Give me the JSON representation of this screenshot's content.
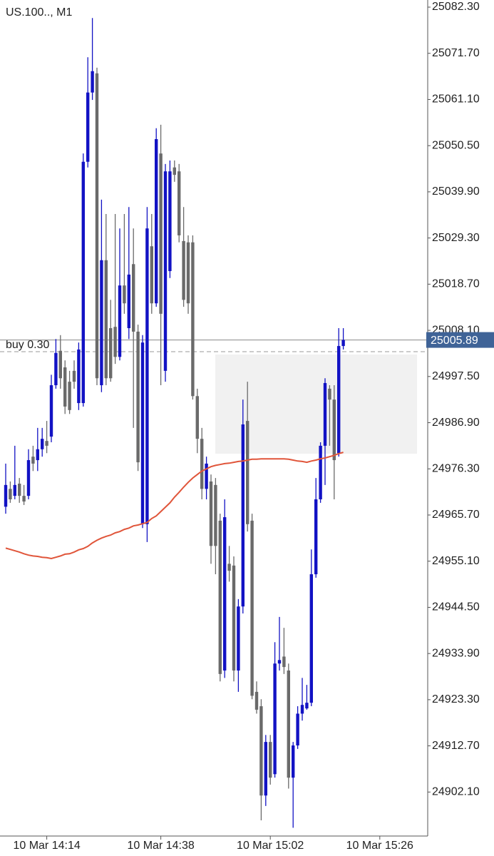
{
  "chart_data": {
    "type": "candlestick",
    "title": "US.100.., M1",
    "up_color": "#1212c4",
    "down_color": "#6a6a6a",
    "open": [
      24967.6,
      24971.7,
      24970.1,
      24972.9,
      24970.1,
      24970.1,
      24979.1,
      24978.3,
      24980.8,
      24982.7,
      24983.7,
      24995.5,
      25003.4,
      24999.6,
      24996.3,
      24998.8,
      24991.4,
      24991.4,
      25046.8,
      25062.7,
      25067.1,
      24995.5,
      25024.2,
      25008.6,
      25008.9,
      25002.0,
      25018.4,
      25008.6,
      25023.3,
      25007.8,
      24963.6,
      24963.6,
      25027.4,
      25014.3,
      25048.7,
      24998.8,
      25021.7,
      25045.5,
      25044.6,
      25028.6,
      25028.3,
      25028.3,
      24993.0,
      24983.2,
      24971.7,
      24973.4,
      24972.6,
      24964.4,
      24930.0,
      24954.5,
      24954.1,
      24930.0,
      24944.7,
      24987.3,
      24964.4,
      24925.1,
      24921.8,
      24901.3,
      24913.6,
      24906.2,
      24931.6,
      24933.2,
      24930.0,
      24905.4,
      24912.8,
      24920.1,
      24921.3,
      24922.6,
      24952.1,
      24969.3,
      24981.6,
      24994.7,
      24992.2,
      24979.9,
      25004.5
    ],
    "high": [
      24977.5,
      24973.4,
      24981.6,
      24974.2,
      24972.6,
      24980.8,
      24981.6,
      24985.7,
      24985.7,
      24987.3,
      24997.9,
      25006.1,
      25007.0,
      25001.2,
      24998.8,
      25001.2,
      25005.3,
      25048.7,
      25070.8,
      25079.8,
      25068.4,
      25038.1,
      25034.8,
      25015.1,
      25034.8,
      25031.5,
      25034.8,
      25036.4,
      25031.5,
      25009.4,
      25007.0,
      25036.4,
      25034.8,
      25054.5,
      25055.3,
      25046.3,
      25047.1,
      25047.1,
      25046.3,
      25036.4,
      25029.9,
      25029.9,
      24994.7,
      24985.7,
      24979.1,
      24975.0,
      24974.2,
      24966.0,
      24969.3,
      24958.6,
      24956.2,
      24946.4,
      24992.2,
      24996.3,
      24966.0,
      24927.5,
      24923.4,
      24915.2,
      24915.2,
      24936.5,
      24942.3,
      24939.8,
      24931.6,
      24913.6,
      24921.8,
      24928.3,
      24926.7,
      24957.8,
      24974.2,
      24982.4,
      24997.1,
      24995.5,
      24995.5,
      25008.6,
      25008.6
    ],
    "low": [
      24966.0,
      24968.5,
      24969.3,
      24968.5,
      24968.0,
      24969.3,
      24975.8,
      24975.8,
      24979.1,
      24979.9,
      24982.4,
      24994.7,
      24994.7,
      24988.9,
      24988.9,
      24994.7,
      24989.8,
      24990.6,
      25045.5,
      25061.0,
      24995.5,
      24993.9,
      24995.5,
      24996.3,
      25000.4,
      25001.2,
      25011.9,
      25006.1,
      24985.7,
      24975.8,
      24962.7,
      24959.5,
      25011.9,
      25013.5,
      24995.5,
      24996.3,
      25020.1,
      25042.2,
      25028.3,
      25013.5,
      25011.9,
      24992.2,
      24979.9,
      24969.3,
      24969.3,
      24954.5,
      24952.1,
      24927.5,
      24928.3,
      24950.4,
      24927.5,
      24925.1,
      24943.1,
      24961.9,
      24923.4,
      24920.1,
      24895.6,
      24898.9,
      24903.8,
      24905.4,
      24930.0,
      24929.2,
      24902.9,
      24893.9,
      24912.0,
      24918.5,
      24921.0,
      24921.8,
      24951.3,
      24968.5,
      24972.6,
      24981.6,
      24969.3,
      24979.1,
      25003.7
    ],
    "close": [
      24972.6,
      24969.3,
      24972.6,
      24970.1,
      24968.8,
      24978.3,
      24977.5,
      24980.8,
      24983.2,
      24981.6,
      24995.5,
      25002.9,
      24997.1,
      24990.6,
      24989.8,
      24996.3,
      25003.7,
      25046.8,
      25062.7,
      25067.6,
      24997.1,
      25024.2,
      24997.1,
      24997.1,
      25002.0,
      25018.4,
      25014.3,
      25020.9,
      25007.8,
      24977.8,
      25005.3,
      25031.5,
      25014.3,
      25052.0,
      25011.9,
      25044.6,
      25044.6,
      25043.8,
      25029.9,
      25015.1,
      25014.3,
      24993.0,
      24983.2,
      24971.7,
      24977.5,
      24958.6,
      24958.6,
      24929.2,
      24965.2,
      24952.9,
      24930.0,
      24944.7,
      24986.5,
      24963.6,
      24924.2,
      24921.0,
      24901.3,
      24913.6,
      24905.4,
      24931.6,
      24932.4,
      24930.8,
      24905.4,
      24912.8,
      24920.1,
      24922.1,
      24922.6,
      24952.1,
      24969.3,
      24981.6,
      24996.0,
      24992.2,
      24978.3,
      25004.5,
      25005.89
    ],
    "moving_average": {
      "color": "#e0553a",
      "values": [
        24958.1,
        24957.8,
        24957.5,
        24957.2,
        24956.8,
        24956.5,
        24956.3,
        24956.2,
        24956.0,
        24955.9,
        24955.7,
        24956.0,
        24956.3,
        24956.7,
        24956.8,
        24957.2,
        24957.7,
        24958.0,
        24958.5,
        24959.3,
        24959.9,
        24960.4,
        24960.8,
        24961.1,
        24961.6,
        24961.9,
        24962.4,
        24962.7,
        24963.2,
        24963.4,
        24963.7,
        24964.0,
        24964.9,
        24965.5,
        24966.5,
        24967.5,
        24968.5,
        24969.8,
        24970.9,
        24972.1,
        24973.2,
        24974.2,
        24975.0,
        24975.8,
        24976.3,
        24976.8,
        24977.1,
        24977.3,
        24977.5,
        24977.6,
        24977.8,
        24978.0,
        24978.1,
        24978.3,
        24978.5,
        24978.5,
        24978.6,
        24978.6,
        24978.6,
        24978.6,
        24978.6,
        24978.6,
        24978.5,
        24978.3,
        24978.1,
        24978.0,
        24977.8,
        24978.1,
        24978.3,
        24978.6,
        24978.8,
        24979.1,
        24979.4,
        24979.8,
        24980.1
      ]
    },
    "current_price": 25005.89,
    "price_label_color": "#3f6397",
    "position": {
      "label": "buy 0.30",
      "value": 25003.2
    },
    "ylim": [
      24892.0,
      25083.94
    ],
    "yticks": [
      {
        "value": 25082.3,
        "label": "25082.30"
      },
      {
        "value": 25071.7,
        "label": "25071.70"
      },
      {
        "value": 25061.1,
        "label": "25061.10"
      },
      {
        "value": 25050.5,
        "label": "25050.50"
      },
      {
        "value": 25039.9,
        "label": "25039.90"
      },
      {
        "value": 25029.3,
        "label": "25029.30"
      },
      {
        "value": 25018.7,
        "label": "25018.70"
      },
      {
        "value": 25008.1,
        "label": "25008.10"
      },
      {
        "value": 24997.5,
        "label": "24997.50"
      },
      {
        "value": 24986.9,
        "label": "24986.90"
      },
      {
        "value": 24976.3,
        "label": "24976.30"
      },
      {
        "value": 24965.7,
        "label": "24965.70"
      },
      {
        "value": 24955.1,
        "label": "24955.10"
      },
      {
        "value": 24944.5,
        "label": "24944.50"
      },
      {
        "value": 24933.9,
        "label": "24933.90"
      },
      {
        "value": 24923.3,
        "label": "24923.30"
      },
      {
        "value": 24912.7,
        "label": "24912.70"
      },
      {
        "value": 24902.1,
        "label": "24902.10"
      }
    ],
    "xlim": [
      -1.25,
      92.5
    ],
    "xticks": [
      {
        "value": 9,
        "label": "10 Mar 14:14"
      },
      {
        "value": 34,
        "label": "10 Mar 14:38"
      },
      {
        "value": 58,
        "label": "10 Mar 15:02"
      },
      {
        "value": 82,
        "label": "10 Mar 15:26"
      }
    ]
  }
}
